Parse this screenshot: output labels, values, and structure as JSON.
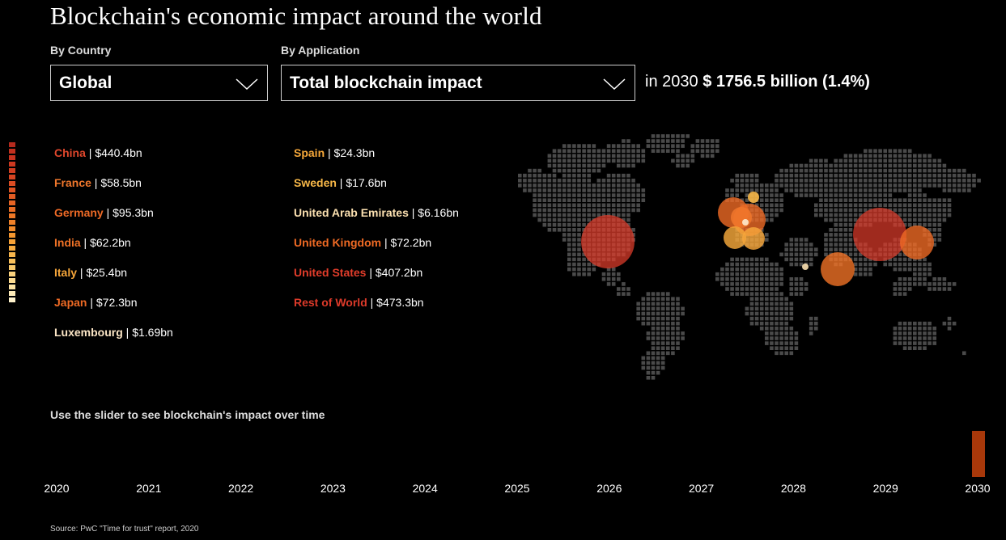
{
  "title": "Blockchain's economic impact around the world",
  "filters": {
    "country_label": "By Country",
    "country_value": "Global",
    "application_label": "By Application",
    "application_value": "Total blockchain impact"
  },
  "impact": {
    "prefix": "in 2030",
    "value": "$ 1756.5 billion (1.4%)"
  },
  "scale_colors": [
    "#b52a1e",
    "#c2301e",
    "#c9331f",
    "#cd3820",
    "#d13e21",
    "#d64522",
    "#db4c22",
    "#df5423",
    "#e35c23",
    "#e76424",
    "#ea6d25",
    "#ed7726",
    "#f08128",
    "#f28b2b",
    "#f4962f",
    "#f6a136",
    "#f7ab40",
    "#f8b64c",
    "#f9c05a",
    "#fac96b",
    "#fbd27d",
    "#fcdb90",
    "#fde3a4",
    "#fdebb8",
    "#fef2cc"
  ],
  "countries_left": [
    {
      "name": "China",
      "value": "$440.4bn",
      "color": "#e0472c"
    },
    {
      "name": "France",
      "value": "$58.5bn",
      "color": "#f0772c"
    },
    {
      "name": "Germany",
      "value": "$95.3bn",
      "color": "#ee6a26"
    },
    {
      "name": "India",
      "value": "$62.2bn",
      "color": "#f07226"
    },
    {
      "name": "Italy",
      "value": "$25.4bn",
      "color": "#f6a63a"
    },
    {
      "name": "Japan",
      "value": "$72.3bn",
      "color": "#ef6a24"
    },
    {
      "name": "Luxembourg",
      "value": "$1.69bn",
      "color": "#fce6c6"
    }
  ],
  "countries_right": [
    {
      "name": "Spain",
      "value": "$24.3bn",
      "color": "#f6a83a"
    },
    {
      "name": "Sweden",
      "value": "$17.6bn",
      "color": "#f8b848"
    },
    {
      "name": "United Arab Emirates",
      "value": "$6.16bn",
      "color": "#fbe0b0"
    },
    {
      "name": "United Kingdom",
      "value": "$72.2bn",
      "color": "#ef6a24"
    },
    {
      "name": "United States",
      "value": "$407.2bn",
      "color": "#e23d2b"
    },
    {
      "name": "Rest of World",
      "value": "$473.3bn",
      "color": "#dd3a2a"
    }
  ],
  "slider": {
    "hint": "Use the slider to see blockchain's impact over time",
    "years": [
      "2020",
      "2021",
      "2022",
      "2023",
      "2024",
      "2025",
      "2026",
      "2027",
      "2028",
      "2029",
      "2030"
    ],
    "selected": "2030"
  },
  "source": "Source: PwC \"Time for trust\" report, 2020"
}
